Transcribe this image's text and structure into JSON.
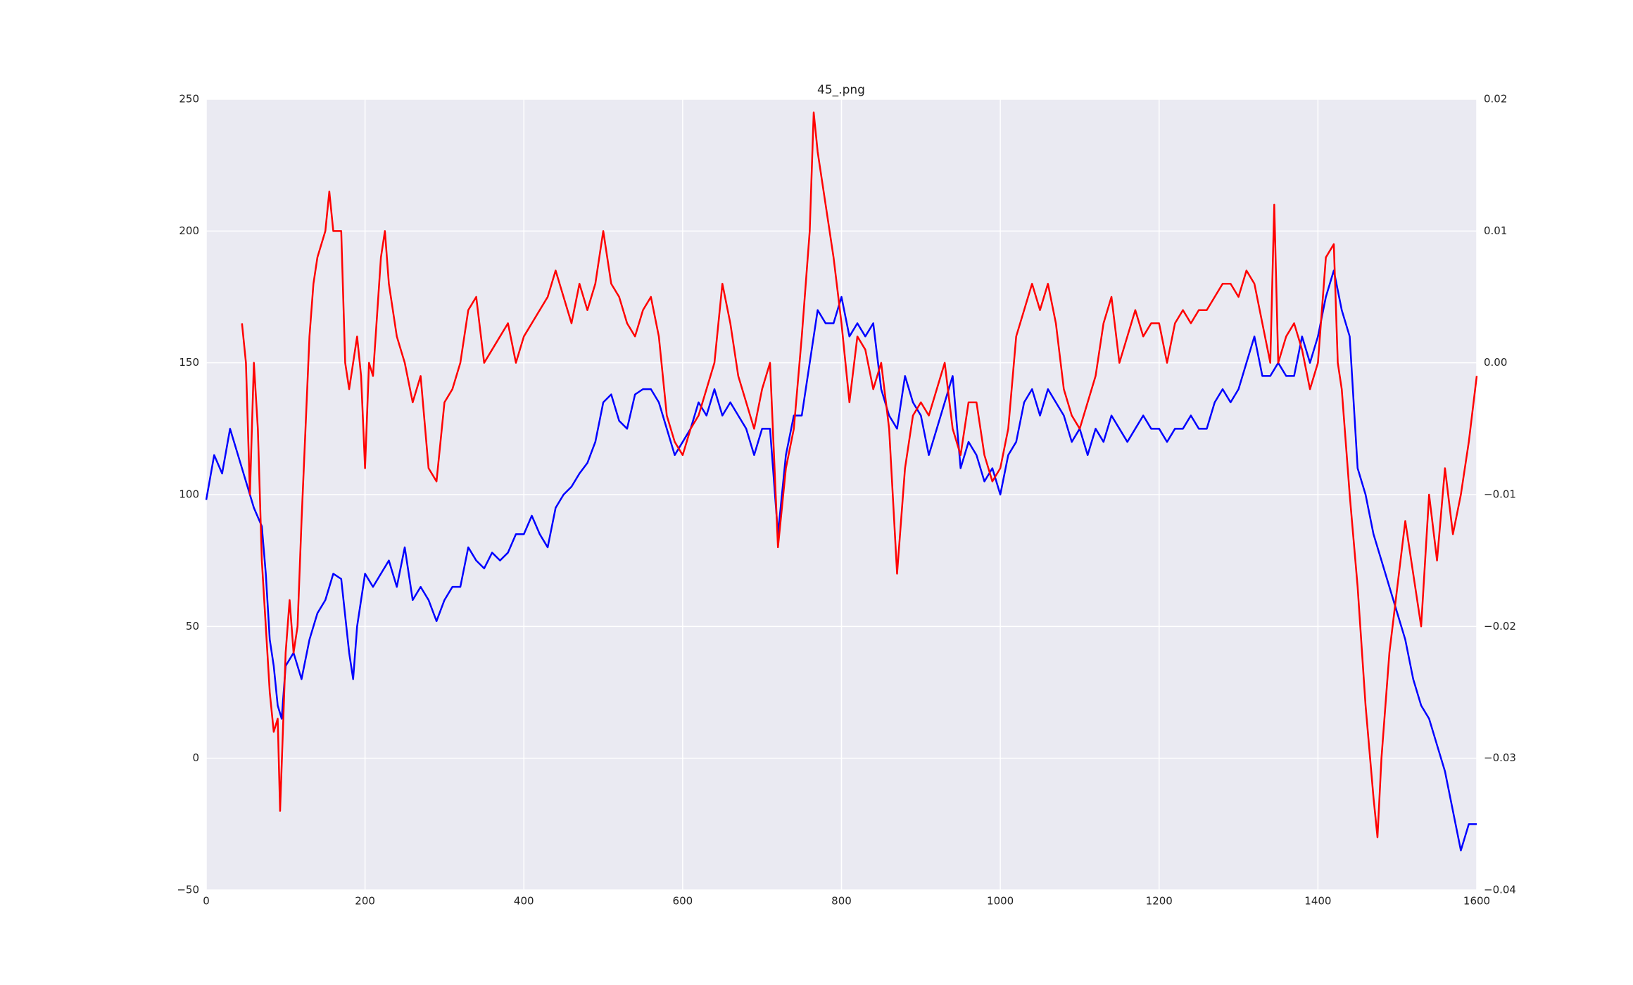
{
  "chart_data": {
    "type": "line",
    "title": "45_.png",
    "grid": true,
    "background": "#eaeaf2",
    "xlim": [
      0,
      1600
    ],
    "xticks": [
      0,
      200,
      400,
      600,
      800,
      1000,
      1200,
      1400,
      1600
    ],
    "ylim": [
      -50,
      250
    ],
    "yticks": [
      {
        "value": -50,
        "label": "−50"
      },
      0,
      50,
      100,
      150,
      200,
      250
    ],
    "y2lim": [
      -0.04,
      0.02
    ],
    "y2ticks": [
      {
        "value": -0.04,
        "label": "−0.04"
      },
      {
        "value": -0.03,
        "label": "−0.03"
      },
      {
        "value": -0.02,
        "label": "−0.02"
      },
      {
        "value": -0.01,
        "label": "−0.01"
      },
      {
        "value": 0,
        "label": "0.00"
      },
      0.01,
      0.02
    ],
    "series": [
      {
        "color": "#0000ff",
        "axis": "y",
        "x": [
          0,
          10,
          20,
          30,
          40,
          50,
          60,
          70,
          75,
          80,
          85,
          90,
          95,
          100,
          110,
          120,
          130,
          140,
          150,
          160,
          170,
          180,
          185,
          190,
          200,
          210,
          220,
          230,
          240,
          250,
          260,
          270,
          280,
          290,
          300,
          310,
          320,
          330,
          340,
          350,
          360,
          370,
          380,
          390,
          400,
          410,
          420,
          430,
          440,
          450,
          460,
          470,
          480,
          490,
          500,
          510,
          520,
          530,
          540,
          550,
          560,
          570,
          580,
          590,
          600,
          610,
          620,
          630,
          640,
          650,
          660,
          670,
          680,
          690,
          700,
          710,
          720,
          730,
          740,
          750,
          760,
          770,
          780,
          790,
          800,
          810,
          820,
          830,
          840,
          850,
          860,
          870,
          880,
          890,
          900,
          910,
          920,
          930,
          940,
          950,
          960,
          970,
          980,
          990,
          1000,
          1010,
          1020,
          1030,
          1040,
          1050,
          1060,
          1070,
          1080,
          1090,
          1100,
          1110,
          1120,
          1130,
          1140,
          1150,
          1160,
          1170,
          1180,
          1190,
          1200,
          1210,
          1220,
          1230,
          1240,
          1250,
          1260,
          1270,
          1280,
          1290,
          1300,
          1310,
          1320,
          1330,
          1340,
          1350,
          1360,
          1370,
          1380,
          1390,
          1400,
          1410,
          1420,
          1430,
          1440,
          1450,
          1460,
          1470,
          1480,
          1490,
          1500,
          1510,
          1520,
          1530,
          1540,
          1550,
          1560,
          1570,
          1580,
          1590,
          1600
        ],
        "values": [
          98,
          115,
          108,
          125,
          115,
          105,
          95,
          88,
          70,
          45,
          35,
          20,
          15,
          35,
          40,
          30,
          45,
          55,
          60,
          70,
          68,
          40,
          30,
          50,
          70,
          65,
          70,
          75,
          65,
          80,
          60,
          65,
          60,
          52,
          60,
          65,
          65,
          80,
          75,
          72,
          78,
          75,
          78,
          85,
          85,
          92,
          85,
          80,
          95,
          100,
          103,
          108,
          112,
          120,
          135,
          138,
          128,
          125,
          138,
          140,
          140,
          135,
          125,
          115,
          120,
          125,
          135,
          130,
          140,
          130,
          135,
          130,
          125,
          115,
          125,
          125,
          85,
          115,
          130,
          130,
          150,
          170,
          165,
          165,
          175,
          160,
          165,
          160,
          165,
          140,
          130,
          125,
          145,
          135,
          130,
          115,
          125,
          135,
          145,
          110,
          120,
          115,
          105,
          110,
          100,
          115,
          120,
          135,
          140,
          130,
          140,
          135,
          130,
          120,
          125,
          115,
          125,
          120,
          130,
          125,
          120,
          125,
          130,
          125,
          125,
          120,
          125,
          125,
          130,
          125,
          125,
          135,
          140,
          135,
          140,
          150,
          160,
          145,
          145,
          150,
          145,
          145,
          160,
          150,
          160,
          175,
          185,
          170,
          160,
          110,
          100,
          85,
          75,
          65,
          55,
          45,
          30,
          20,
          15,
          5,
          -5,
          -20,
          -35,
          -25,
          -25
        ]
      },
      {
        "color": "#ff0000",
        "axis": "y2",
        "x": [
          45,
          50,
          55,
          60,
          65,
          70,
          75,
          80,
          85,
          90,
          93,
          100,
          105,
          110,
          115,
          120,
          125,
          130,
          135,
          140,
          150,
          155,
          160,
          170,
          175,
          180,
          190,
          195,
          200,
          205,
          210,
          220,
          225,
          230,
          240,
          250,
          260,
          270,
          280,
          290,
          300,
          310,
          320,
          330,
          340,
          350,
          360,
          370,
          380,
          390,
          400,
          410,
          420,
          430,
          440,
          450,
          460,
          470,
          480,
          490,
          500,
          510,
          520,
          530,
          540,
          550,
          560,
          570,
          580,
          590,
          600,
          610,
          620,
          630,
          640,
          650,
          660,
          670,
          680,
          690,
          700,
          710,
          720,
          730,
          740,
          750,
          760,
          765,
          770,
          780,
          790,
          800,
          810,
          820,
          830,
          840,
          850,
          860,
          870,
          880,
          890,
          900,
          910,
          920,
          930,
          940,
          950,
          960,
          970,
          980,
          990,
          1000,
          1010,
          1020,
          1030,
          1040,
          1050,
          1060,
          1070,
          1080,
          1090,
          1100,
          1110,
          1120,
          1130,
          1140,
          1150,
          1160,
          1170,
          1180,
          1190,
          1200,
          1210,
          1220,
          1230,
          1240,
          1250,
          1260,
          1270,
          1280,
          1290,
          1300,
          1310,
          1320,
          1330,
          1340,
          1345,
          1350,
          1360,
          1370,
          1380,
          1390,
          1400,
          1410,
          1420,
          1425,
          1430,
          1440,
          1450,
          1460,
          1470,
          1475,
          1480,
          1490,
          1500,
          1510,
          1520,
          1530,
          1540,
          1550,
          1560,
          1570,
          1580,
          1590,
          1600
        ],
        "values": [
          0.003,
          0.0,
          -0.01,
          0.0,
          -0.005,
          -0.015,
          -0.02,
          -0.025,
          -0.028,
          -0.027,
          -0.034,
          -0.022,
          -0.018,
          -0.022,
          -0.02,
          -0.012,
          -0.005,
          0.002,
          0.006,
          0.008,
          0.01,
          0.013,
          0.01,
          0.01,
          0.0,
          -0.002,
          0.002,
          -0.001,
          -0.008,
          0.0,
          -0.001,
          0.008,
          0.01,
          0.006,
          0.002,
          0.0,
          -0.003,
          -0.001,
          -0.008,
          -0.009,
          -0.003,
          -0.002,
          0.0,
          0.004,
          0.005,
          0.0,
          0.001,
          0.002,
          0.003,
          0.0,
          0.002,
          0.003,
          0.004,
          0.005,
          0.007,
          0.005,
          0.003,
          0.006,
          0.004,
          0.006,
          0.01,
          0.006,
          0.005,
          0.003,
          0.002,
          0.004,
          0.005,
          0.002,
          -0.004,
          -0.006,
          -0.007,
          -0.005,
          -0.004,
          -0.002,
          0.0,
          0.006,
          0.003,
          -0.001,
          -0.003,
          -0.005,
          -0.002,
          0.0,
          -0.014,
          -0.008,
          -0.005,
          0.002,
          0.01,
          0.019,
          0.016,
          0.012,
          0.008,
          0.003,
          -0.003,
          0.002,
          0.001,
          -0.002,
          0.0,
          -0.005,
          -0.016,
          -0.008,
          -0.004,
          -0.003,
          -0.004,
          -0.002,
          0.0,
          -0.005,
          -0.007,
          -0.003,
          -0.003,
          -0.007,
          -0.009,
          -0.008,
          -0.005,
          0.002,
          0.004,
          0.006,
          0.004,
          0.006,
          0.003,
          -0.002,
          -0.004,
          -0.005,
          -0.003,
          -0.001,
          0.003,
          0.005,
          0.0,
          0.002,
          0.004,
          0.002,
          0.003,
          0.003,
          0.0,
          0.003,
          0.004,
          0.003,
          0.004,
          0.004,
          0.005,
          0.006,
          0.006,
          0.005,
          0.007,
          0.006,
          0.003,
          0.0,
          0.012,
          0.0,
          0.002,
          0.003,
          0.001,
          -0.002,
          0.0,
          0.008,
          0.009,
          0.0,
          -0.002,
          -0.01,
          -0.017,
          -0.026,
          -0.033,
          -0.036,
          -0.03,
          -0.022,
          -0.017,
          -0.012,
          -0.016,
          -0.02,
          -0.01,
          -0.015,
          -0.008,
          -0.013,
          -0.01,
          -0.006,
          -0.001
        ]
      }
    ]
  }
}
